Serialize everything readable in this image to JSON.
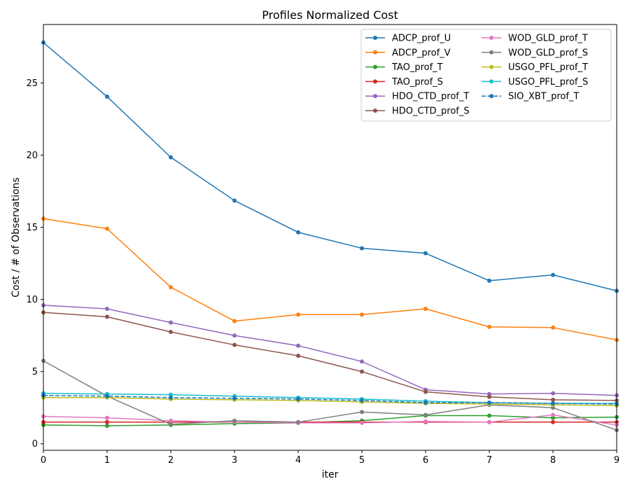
{
  "chart_data": {
    "type": "line",
    "title": "Profiles Normalized Cost",
    "xlabel": "iter",
    "ylabel": "Cost / # of Observations",
    "xlim": [
      0,
      9
    ],
    "ylim": [
      -0.45,
      29.05
    ],
    "xticks": [
      0,
      1,
      2,
      3,
      4,
      5,
      6,
      7,
      8,
      9
    ],
    "yticks": [
      0,
      5,
      10,
      15,
      20,
      25
    ],
    "grid": false,
    "legend_position": "top-right",
    "legend_columns": 2,
    "x": [
      0,
      1,
      2,
      3,
      4,
      5,
      6,
      7,
      8,
      9
    ],
    "series": [
      {
        "name": "ADCP_prof_U",
        "color": "#1f77b4",
        "dashed": false,
        "values": [
          27.8,
          24.05,
          19.85,
          16.85,
          14.65,
          13.55,
          13.2,
          11.3,
          11.7,
          10.6
        ]
      },
      {
        "name": "ADCP_prof_V",
        "color": "#ff7f0e",
        "dashed": false,
        "values": [
          15.6,
          14.9,
          10.85,
          8.5,
          8.95,
          8.95,
          9.35,
          8.1,
          8.05,
          7.2
        ]
      },
      {
        "name": "TAO_prof_T",
        "color": "#2ca02c",
        "dashed": false,
        "values": [
          1.3,
          1.25,
          1.3,
          1.4,
          1.45,
          1.6,
          1.95,
          1.95,
          1.8,
          1.85
        ]
      },
      {
        "name": "TAO_prof_S",
        "color": "#d62728",
        "dashed": false,
        "values": [
          1.5,
          1.5,
          1.5,
          1.5,
          1.5,
          1.5,
          1.5,
          1.5,
          1.5,
          1.5
        ]
      },
      {
        "name": "HDO_CTD_prof_T",
        "color": "#9467bd",
        "dashed": false,
        "values": [
          9.6,
          9.35,
          8.4,
          7.5,
          6.8,
          5.7,
          3.75,
          3.45,
          3.5,
          3.35
        ]
      },
      {
        "name": "HDO_CTD_prof_S",
        "color": "#8c564b",
        "dashed": false,
        "values": [
          9.1,
          8.8,
          7.75,
          6.85,
          6.1,
          5.0,
          3.6,
          3.25,
          3.05,
          3.0
        ]
      },
      {
        "name": "WOD_GLD_prof_T",
        "color": "#e377c2",
        "dashed": false,
        "values": [
          1.9,
          1.8,
          1.6,
          1.5,
          1.45,
          1.45,
          1.55,
          1.5,
          2.0,
          1.3
        ]
      },
      {
        "name": "WOD_GLD_prof_S",
        "color": "#7f7f7f",
        "dashed": false,
        "values": [
          5.75,
          3.3,
          1.35,
          1.6,
          1.5,
          2.2,
          2.0,
          2.7,
          2.5,
          0.95
        ]
      },
      {
        "name": "USGO_PFL_prof_T",
        "color": "#bcbd22",
        "dashed": false,
        "values": [
          3.2,
          3.2,
          3.1,
          3.05,
          3.0,
          2.9,
          2.8,
          2.75,
          2.7,
          2.65
        ]
      },
      {
        "name": "USGO_PFL_prof_S",
        "color": "#17becf",
        "dashed": false,
        "values": [
          3.5,
          3.45,
          3.4,
          3.3,
          3.2,
          3.1,
          2.95,
          2.85,
          2.8,
          2.8
        ]
      },
      {
        "name": "SIO_XBT_prof_T",
        "color": "#1f77b4",
        "dashed": true,
        "values": [
          3.35,
          3.3,
          3.2,
          3.15,
          3.1,
          3.0,
          2.85,
          2.85,
          2.8,
          2.75
        ]
      }
    ]
  }
}
